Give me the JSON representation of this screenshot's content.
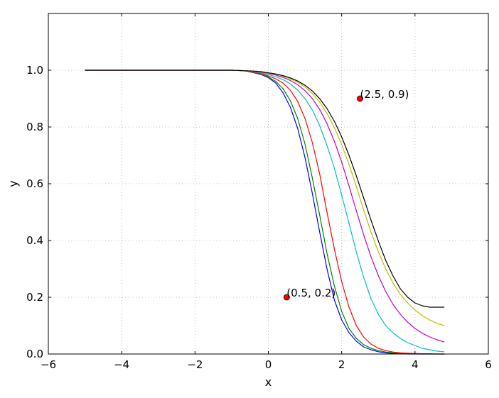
{
  "chart_data": {
    "type": "line",
    "title": "",
    "xlabel": "x",
    "ylabel": "y",
    "xlim": [
      -6,
      6
    ],
    "ylim": [
      0,
      1.2
    ],
    "xticks": [
      -6,
      -4,
      -2,
      0,
      2,
      4,
      6
    ],
    "xtick_labels": [
      "−6",
      "−4",
      "−2",
      "0",
      "2",
      "4",
      "6"
    ],
    "yticks": [
      0.0,
      0.2,
      0.4,
      0.6,
      0.8,
      1.0
    ],
    "ytick_labels": [
      "0.0",
      "0.2",
      "0.4",
      "0.6",
      "0.8",
      "1.0"
    ],
    "grid": true,
    "x": [
      -5.0,
      -4.8,
      -4.6,
      -4.4,
      -4.2,
      -4.0,
      -3.8,
      -3.6,
      -3.4,
      -3.2,
      -3.0,
      -2.8,
      -2.6,
      -2.4,
      -2.2,
      -2.0,
      -1.8,
      -1.6,
      -1.4,
      -1.2,
      -1.0,
      -0.8,
      -0.6,
      -0.4,
      -0.2,
      0.0,
      0.2,
      0.4,
      0.6,
      0.8,
      1.0,
      1.2,
      1.4,
      1.6,
      1.8,
      2.0,
      2.2,
      2.4,
      2.6,
      2.8,
      3.0,
      3.2,
      3.4,
      3.6,
      3.8,
      4.0,
      4.2,
      4.4,
      4.6,
      4.8
    ],
    "series": [
      {
        "color": "#0000ff",
        "values": [
          1.0,
          1.0,
          1.0,
          1.0,
          1.0,
          1.0,
          1.0,
          1.0,
          1.0,
          1.0,
          1.0,
          1.0,
          1.0,
          1.0,
          1.0,
          1.0,
          1.0,
          1.0,
          1.0,
          1.0,
          1.0,
          0.999,
          0.997,
          0.991,
          0.985,
          0.974,
          0.955,
          0.921,
          0.87,
          0.795,
          0.692,
          0.566,
          0.43,
          0.3,
          0.19,
          0.12,
          0.075,
          0.045,
          0.025,
          0.015,
          0.008,
          0.004,
          0.002,
          0.001,
          0.0,
          0.0,
          0.0,
          0.0,
          0.0,
          0.0
        ]
      },
      {
        "color": "#008000",
        "values": [
          1.0,
          1.0,
          1.0,
          1.0,
          1.0,
          1.0,
          1.0,
          1.0,
          1.0,
          1.0,
          1.0,
          1.0,
          1.0,
          1.0,
          1.0,
          1.0,
          1.0,
          1.0,
          1.0,
          1.0,
          1.0,
          0.999,
          0.997,
          0.992,
          0.986,
          0.976,
          0.961,
          0.935,
          0.893,
          0.83,
          0.74,
          0.62,
          0.49,
          0.355,
          0.24,
          0.15,
          0.09,
          0.055,
          0.033,
          0.02,
          0.012,
          0.007,
          0.004,
          0.002,
          0.001,
          0.001,
          0.0,
          0.0,
          0.0,
          0.0
        ]
      },
      {
        "color": "#ff0000",
        "values": [
          1.0,
          1.0,
          1.0,
          1.0,
          1.0,
          1.0,
          1.0,
          1.0,
          1.0,
          1.0,
          1.0,
          1.0,
          1.0,
          1.0,
          1.0,
          1.0,
          1.0,
          1.0,
          1.0,
          1.0,
          1.0,
          0.999,
          0.997,
          0.993,
          0.988,
          0.98,
          0.97,
          0.955,
          0.93,
          0.89,
          0.83,
          0.745,
          0.635,
          0.5,
          0.37,
          0.255,
          0.165,
          0.1,
          0.06,
          0.035,
          0.02,
          0.012,
          0.007,
          0.004,
          0.003,
          0.002,
          0.001,
          0.001,
          0.0,
          0.0
        ]
      },
      {
        "color": "#00bfbf",
        "values": [
          1.0,
          1.0,
          1.0,
          1.0,
          1.0,
          1.0,
          1.0,
          1.0,
          1.0,
          1.0,
          1.0,
          1.0,
          1.0,
          1.0,
          1.0,
          1.0,
          1.0,
          1.0,
          1.0,
          1.0,
          1.0,
          0.999,
          0.998,
          0.995,
          0.991,
          0.985,
          0.977,
          0.967,
          0.952,
          0.93,
          0.9,
          0.86,
          0.805,
          0.735,
          0.655,
          0.56,
          0.46,
          0.36,
          0.27,
          0.195,
          0.14,
          0.1,
          0.075,
          0.055,
          0.04,
          0.03,
          0.02,
          0.015,
          0.01,
          0.008
        ]
      },
      {
        "color": "#bf00bf",
        "values": [
          1.0,
          1.0,
          1.0,
          1.0,
          1.0,
          1.0,
          1.0,
          1.0,
          1.0,
          1.0,
          1.0,
          1.0,
          1.0,
          1.0,
          1.0,
          1.0,
          1.0,
          1.0,
          1.0,
          1.0,
          1.0,
          0.999,
          0.998,
          0.996,
          0.993,
          0.989,
          0.983,
          0.975,
          0.964,
          0.949,
          0.928,
          0.9,
          0.862,
          0.812,
          0.75,
          0.676,
          0.592,
          0.505,
          0.42,
          0.343,
          0.276,
          0.22,
          0.175,
          0.14,
          0.112,
          0.09,
          0.073,
          0.06,
          0.05,
          0.042
        ]
      },
      {
        "color": "#bfbf00",
        "values": [
          1.0,
          1.0,
          1.0,
          1.0,
          1.0,
          1.0,
          1.0,
          1.0,
          1.0,
          1.0,
          1.0,
          1.0,
          1.0,
          1.0,
          1.0,
          1.0,
          1.0,
          1.0,
          1.0,
          1.0,
          1.0,
          0.999,
          0.998,
          0.996,
          0.994,
          0.99,
          0.986,
          0.979,
          0.97,
          0.958,
          0.941,
          0.918,
          0.888,
          0.848,
          0.798,
          0.738,
          0.668,
          0.59,
          0.508,
          0.43,
          0.36,
          0.3,
          0.25,
          0.21,
          0.18,
          0.155,
          0.135,
          0.12,
          0.108,
          0.1
        ]
      },
      {
        "color": "#000000",
        "values": [
          1.0,
          1.0,
          1.0,
          1.0,
          1.0,
          1.0,
          1.0,
          1.0,
          1.0,
          1.0,
          1.0,
          1.0,
          1.0,
          1.0,
          1.0,
          1.0,
          1.0,
          1.0,
          1.0,
          1.0,
          1.0,
          0.999,
          0.998,
          0.997,
          0.995,
          0.991,
          0.987,
          0.981,
          0.973,
          0.962,
          0.947,
          0.927,
          0.9,
          0.865,
          0.82,
          0.765,
          0.7,
          0.628,
          0.55,
          0.472,
          0.398,
          0.33,
          0.275,
          0.23,
          0.2,
          0.18,
          0.17,
          0.165,
          0.165,
          0.165
        ]
      }
    ],
    "annotations": [
      {
        "x": 0.5,
        "y": 0.2,
        "label": "(0.5, 0.2)",
        "marker_color": "#ff0000"
      },
      {
        "x": 2.5,
        "y": 0.9,
        "label": "(2.5, 0.9)",
        "marker_color": "#ff0000"
      }
    ]
  }
}
